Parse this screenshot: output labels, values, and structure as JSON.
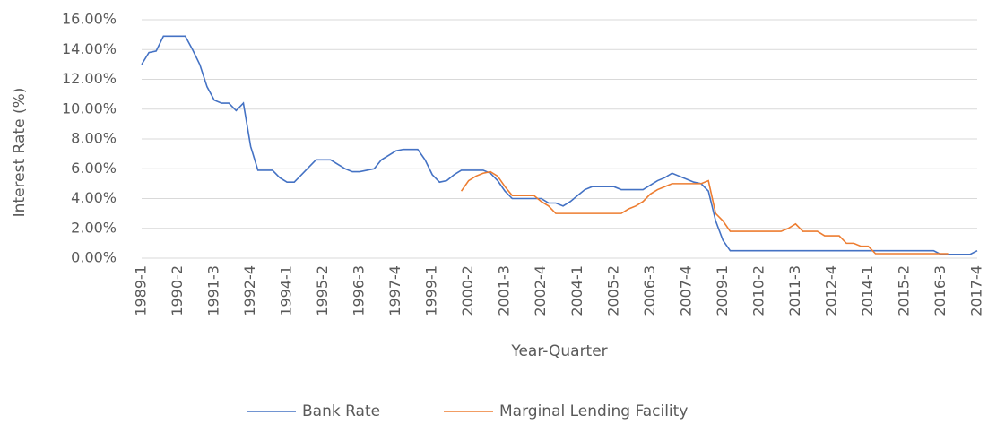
{
  "chart_data": {
    "type": "line",
    "x_label": "Year-Quarter",
    "y_label": "Interest Rate (%)",
    "categories": [
      "1989-1",
      null,
      null,
      null,
      null,
      "1990-2",
      null,
      null,
      null,
      null,
      "1991-3",
      null,
      null,
      null,
      null,
      "1992-4",
      null,
      null,
      null,
      null,
      "1994-1",
      null,
      null,
      null,
      null,
      "1995-2",
      null,
      null,
      null,
      null,
      "1996-3",
      null,
      null,
      null,
      null,
      "1997-4",
      null,
      null,
      null,
      null,
      "1999-1",
      null,
      null,
      null,
      null,
      "2000-2",
      null,
      null,
      null,
      null,
      "2001-3",
      null,
      null,
      null,
      null,
      "2002-4",
      null,
      null,
      null,
      null,
      "2004-1",
      null,
      null,
      null,
      null,
      "2005-2",
      null,
      null,
      null,
      null,
      "2006-3",
      null,
      null,
      null,
      null,
      "2007-4",
      null,
      null,
      null,
      null,
      "2009-1",
      null,
      null,
      null,
      null,
      "2010-2",
      null,
      null,
      null,
      null,
      "2011-3",
      null,
      null,
      null,
      null,
      "2012-4",
      null,
      null,
      null,
      null,
      "2014-1",
      null,
      null,
      null,
      null,
      "2015-2",
      null,
      null,
      null,
      null,
      "2016-3",
      null,
      null,
      null,
      null,
      "2017-4"
    ],
    "series": [
      {
        "name": "Bank Rate",
        "color": "#4472c4",
        "values": [
          13.0,
          13.8,
          13.9,
          14.9,
          14.9,
          14.9,
          14.9,
          14.0,
          13.0,
          11.5,
          10.6,
          10.4,
          10.4,
          9.9,
          10.4,
          7.5,
          5.9,
          5.9,
          5.9,
          5.4,
          5.1,
          5.1,
          5.6,
          6.1,
          6.6,
          6.6,
          6.6,
          6.3,
          6.0,
          5.8,
          5.8,
          5.9,
          6.0,
          6.6,
          6.9,
          7.2,
          7.3,
          7.3,
          7.3,
          6.6,
          5.6,
          5.1,
          5.2,
          5.6,
          5.9,
          5.9,
          5.9,
          5.9,
          5.7,
          5.2,
          4.5,
          4.0,
          4.0,
          4.0,
          4.0,
          4.0,
          3.7,
          3.7,
          3.5,
          3.8,
          4.2,
          4.6,
          4.8,
          4.8,
          4.8,
          4.8,
          4.6,
          4.6,
          4.6,
          4.6,
          4.9,
          5.2,
          5.4,
          5.7,
          5.5,
          5.3,
          5.1,
          5.0,
          4.5,
          2.5,
          1.2,
          0.5,
          0.5,
          0.5,
          0.5,
          0.5,
          0.5,
          0.5,
          0.5,
          0.5,
          0.5,
          0.5,
          0.5,
          0.5,
          0.5,
          0.5,
          0.5,
          0.5,
          0.5,
          0.5,
          0.5,
          0.5,
          0.5,
          0.5,
          0.5,
          0.5,
          0.5,
          0.5,
          0.5,
          0.5,
          0.25,
          0.25,
          0.25,
          0.25,
          0.25,
          0.5
        ]
      },
      {
        "name": "Marginal Lending Facility",
        "color": "#ed7d31",
        "values": [
          null,
          null,
          null,
          null,
          null,
          null,
          null,
          null,
          null,
          null,
          null,
          null,
          null,
          null,
          null,
          null,
          null,
          null,
          null,
          null,
          null,
          null,
          null,
          null,
          null,
          null,
          null,
          null,
          null,
          null,
          null,
          null,
          null,
          null,
          null,
          null,
          null,
          null,
          null,
          null,
          null,
          null,
          null,
          null,
          4.5,
          5.2,
          5.5,
          5.7,
          5.8,
          5.5,
          4.8,
          4.2,
          4.2,
          4.2,
          4.2,
          3.8,
          3.5,
          3.0,
          3.0,
          3.0,
          3.0,
          3.0,
          3.0,
          3.0,
          3.0,
          3.0,
          3.0,
          3.3,
          3.5,
          3.8,
          4.3,
          4.6,
          4.8,
          5.0,
          5.0,
          5.0,
          5.0,
          5.0,
          5.2,
          3.0,
          2.5,
          1.8,
          1.8,
          1.8,
          1.8,
          1.8,
          1.8,
          1.8,
          1.8,
          2.0,
          2.3,
          1.8,
          1.8,
          1.8,
          1.5,
          1.5,
          1.5,
          1.0,
          1.0,
          0.8,
          0.8,
          0.3,
          0.3,
          0.3,
          0.3,
          0.3,
          0.3,
          0.3,
          0.3,
          0.3,
          0.3,
          0.3,
          null,
          null,
          null,
          null
        ]
      }
    ],
    "ylim": [
      0,
      16
    ],
    "yticks": [
      {
        "value": 0,
        "label": "0.00%"
      },
      {
        "value": 2,
        "label": "2.00%"
      },
      {
        "value": 4,
        "label": "4.00%"
      },
      {
        "value": 6,
        "label": "6.00%"
      },
      {
        "value": 8,
        "label": "8.00%"
      },
      {
        "value": 10,
        "label": "10.00%"
      },
      {
        "value": 12,
        "label": "12.00%"
      },
      {
        "value": 14,
        "label": "14.00%"
      },
      {
        "value": 16,
        "label": "16.00%"
      }
    ],
    "grid": true,
    "legend": "bottom"
  }
}
